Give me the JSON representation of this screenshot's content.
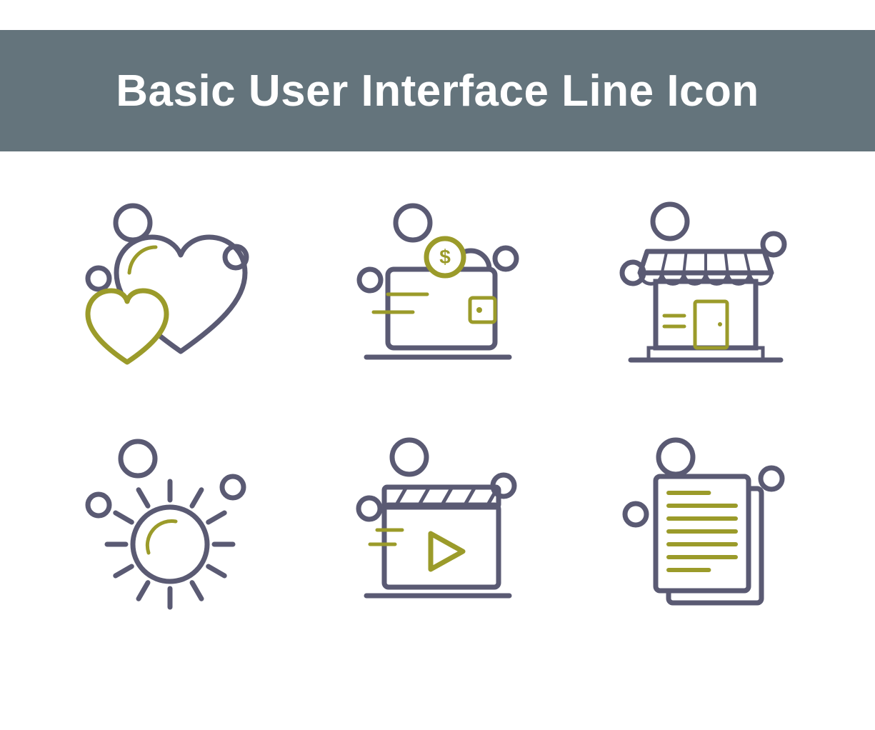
{
  "header": {
    "title": "Basic User Interface Line Icon",
    "bg_color": "#64747c",
    "text_color": "#ffffff"
  },
  "palette": {
    "primary": "#5a5a73",
    "accent": "#9b9b2a",
    "background": "#ffffff",
    "stroke_width_main": 7,
    "stroke_width_thin": 5,
    "bubble_radius_large": 24,
    "bubble_radius_small": 15
  },
  "icons": [
    {
      "id": "heart",
      "name": "heart-favorite-icon"
    },
    {
      "id": "wallet",
      "name": "wallet-money-icon"
    },
    {
      "id": "store",
      "name": "store-shop-icon"
    },
    {
      "id": "sun",
      "name": "sun-brightness-icon"
    },
    {
      "id": "video",
      "name": "video-clapper-icon"
    },
    {
      "id": "document",
      "name": "document-file-icon"
    }
  ]
}
